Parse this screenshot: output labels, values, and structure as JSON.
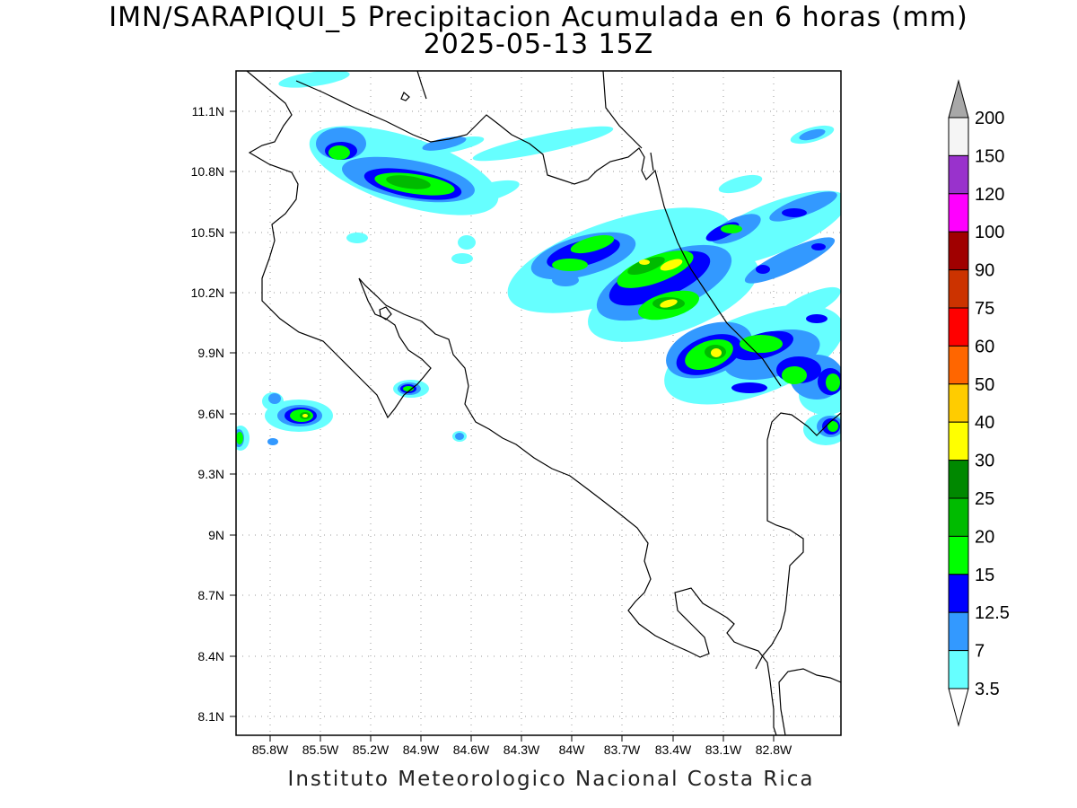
{
  "title_line1": "IMN/SARAPIQUI_5 Precipitacion Acumulada en 6 horas (mm)",
  "title_line2": "2025-05-13 15Z",
  "footer": "Instituto Meteorologico Nacional Costa Rica",
  "map": {
    "lon_range": [
      -86.05,
      -82.45
    ],
    "lat_range": [
      8.0,
      11.3
    ],
    "lat_ticks": [
      "11.1N",
      "10.8N",
      "10.5N",
      "10.2N",
      "9.9N",
      "9.6N",
      "9.3N",
      "9N",
      "8.7N",
      "8.4N",
      "8.1N"
    ],
    "lon_ticks": [
      "85.8W",
      "85.5W",
      "85.2W",
      "84.9W",
      "84.6W",
      "84.3W",
      "84W",
      "83.7W",
      "83.4W",
      "83.1W",
      "82.8W"
    ],
    "grid": true,
    "background_color": "#ffffff",
    "coastline_color": "#000000"
  },
  "colorbar": {
    "labels": [
      "200",
      "150",
      "120",
      "100",
      "90",
      "75",
      "60",
      "50",
      "40",
      "30",
      "25",
      "20",
      "15",
      "12.5",
      "7",
      "3.5"
    ],
    "colors": [
      "#f5f5f5",
      "#9932cc",
      "#ff00ff",
      "#a00000",
      "#cc3300",
      "#ff0000",
      "#ff6600",
      "#ffcc00",
      "#ffff00",
      "#008800",
      "#00bb00",
      "#00ff00",
      "#0000ff",
      "#3399ff",
      "#66ffff"
    ],
    "over_color": "#a8a8a8",
    "under_color": "#ffffff"
  }
}
